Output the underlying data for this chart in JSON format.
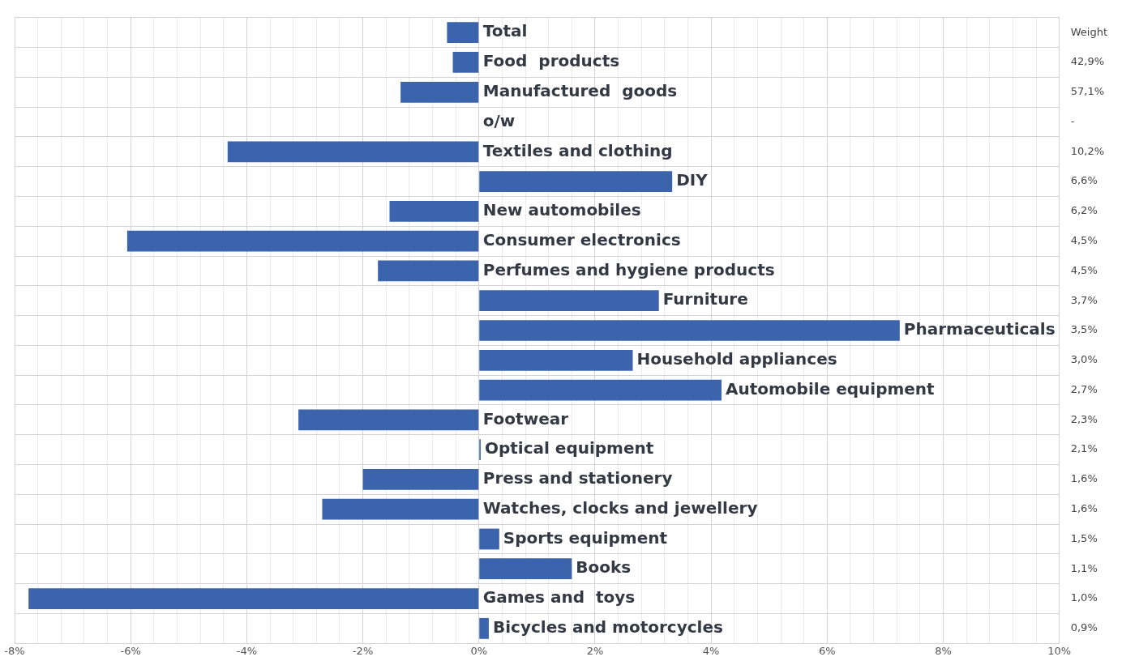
{
  "chart_data": {
    "type": "bar",
    "orientation": "horizontal",
    "color": "#3c64ad",
    "categories": [
      "Total",
      "Food  products",
      "Manufactured  goods",
      "o/w",
      "Textiles and clothing",
      "DIY",
      "New automobiles",
      "Consumer electronics",
      "Perfumes and hygiene products",
      "Furniture",
      "Pharmaceuticals",
      "Household appliances",
      "Automobile equipment",
      "Footwear",
      "Optical equipment",
      "Press and stationery",
      "Watches, clocks and jewellery",
      "Sports equipment",
      "Books",
      "Games and  toys",
      "Bicycles and motorcycles"
    ],
    "values": [
      -0.55,
      -0.45,
      -1.35,
      null,
      -4.33,
      3.33,
      -1.54,
      -6.06,
      -1.74,
      3.1,
      7.25,
      2.65,
      4.18,
      -3.11,
      0.03,
      -2.0,
      -2.7,
      0.35,
      1.6,
      -7.76,
      0.17
    ],
    "y2_categories": [
      "Weight",
      "42,9%",
      "57,1%",
      "-",
      "10,2%",
      "6,6%",
      "6,2%",
      "4,5%",
      "4,5%",
      "3,7%",
      "3,5%",
      "3,0%",
      "2,7%",
      "2,3%",
      "2,1%",
      "1,6%",
      "1,6%",
      "1,5%",
      "1,1%",
      "1,0%",
      "0,9%"
    ],
    "xlim": [
      -8,
      10
    ],
    "xticks": [
      {
        "value": -8,
        "label": "-8%"
      },
      {
        "value": -7.6,
        "label": null
      },
      {
        "value": -7.2,
        "label": null
      },
      {
        "value": -6.8,
        "label": null
      },
      {
        "value": -6.4,
        "label": null
      },
      {
        "value": -6,
        "label": "-6%"
      },
      {
        "value": -5.6,
        "label": null
      },
      {
        "value": -5.2,
        "label": null
      },
      {
        "value": -4.8,
        "label": null
      },
      {
        "value": -4.4,
        "label": null
      },
      {
        "value": -4,
        "label": "-4%"
      },
      {
        "value": -3.6,
        "label": null
      },
      {
        "value": -3.2,
        "label": null
      },
      {
        "value": -2.8,
        "label": null
      },
      {
        "value": -2.4,
        "label": null
      },
      {
        "value": -2,
        "label": "-2%"
      },
      {
        "value": -1.6,
        "label": null
      },
      {
        "value": -1.2,
        "label": null
      },
      {
        "value": -0.8,
        "label": null
      },
      {
        "value": -0.4,
        "label": null
      },
      {
        "value": 0,
        "label": "0%"
      },
      {
        "value": 0.4,
        "label": null
      },
      {
        "value": 0.8,
        "label": null
      },
      {
        "value": 1.2,
        "label": null
      },
      {
        "value": 1.6,
        "label": null
      },
      {
        "value": 2,
        "label": "2%"
      },
      {
        "value": 2.4,
        "label": null
      },
      {
        "value": 2.8,
        "label": null
      },
      {
        "value": 3.2,
        "label": null
      },
      {
        "value": 3.6,
        "label": null
      },
      {
        "value": 4,
        "label": "4%"
      },
      {
        "value": 4.4,
        "label": null
      },
      {
        "value": 4.8,
        "label": null
      },
      {
        "value": 5.2,
        "label": null
      },
      {
        "value": 5.6,
        "label": null
      },
      {
        "value": 6,
        "label": "6%"
      },
      {
        "value": 6.4,
        "label": null
      },
      {
        "value": 6.8,
        "label": null
      },
      {
        "value": 7.2,
        "label": null
      },
      {
        "value": 7.6,
        "label": null
      },
      {
        "value": 8,
        "label": "8%"
      },
      {
        "value": 8.4,
        "label": null
      },
      {
        "value": 8.8,
        "label": null
      },
      {
        "value": 9.2,
        "label": null
      },
      {
        "value": 9.6,
        "label": null
      },
      {
        "value": 10,
        "label": "10%"
      }
    ],
    "grid": true,
    "legend": false
  }
}
